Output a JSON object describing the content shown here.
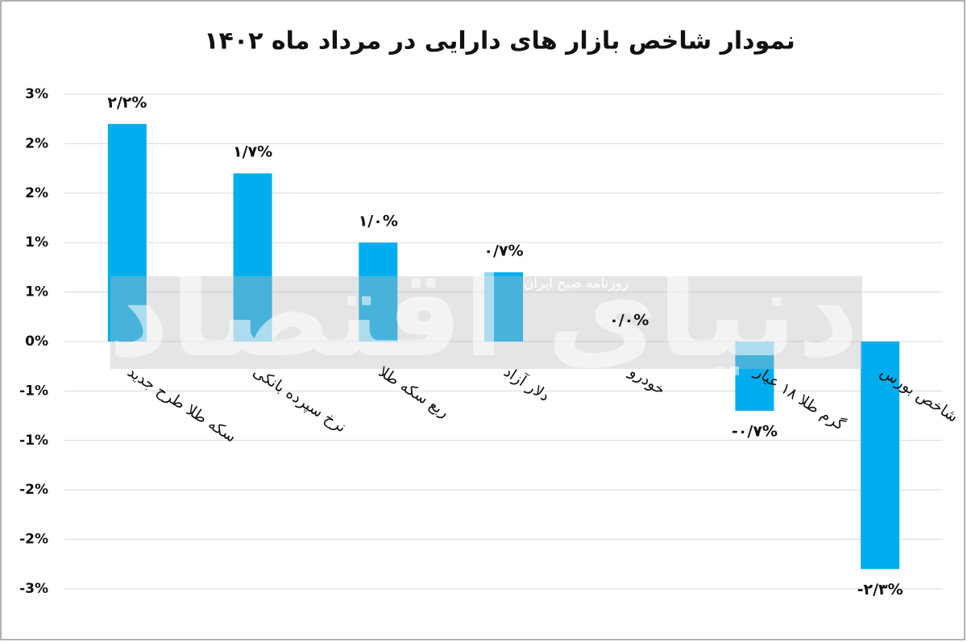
{
  "chart_data": {
    "type": "bar",
    "title": "نمودار شاخص بازار های دارایی در مرداد ماه ۱۴۰۲",
    "categories": [
      "سکه طلا طرح جدید",
      "نرخ سپرده بانکی",
      "ربع سکه طلا",
      "دلار آزاد",
      "خودرو",
      "گرم طلا ۱۸ عیار",
      "شاخص بورس"
    ],
    "values": [
      2.2,
      1.7,
      1.0,
      0.7,
      0,
      -0.7,
      -2.3
    ],
    "value_labels": [
      "۲/۲%",
      "۱/۷%",
      "۱/۰%",
      "۰/۷%",
      "۰/۰%",
      "-۰/۷%",
      "-۲/۳%"
    ],
    "color": "#00aeef",
    "ylim": [
      -2.5,
      2.5
    ],
    "yticks": [
      {
        "value": 2.5,
        "label": "3%"
      },
      {
        "value": 2,
        "label": "2%"
      },
      {
        "value": 1.5,
        "label": "2%"
      },
      {
        "value": 1,
        "label": "1%"
      },
      {
        "value": 0.5,
        "label": "1%"
      },
      {
        "value": 0,
        "label": "0%"
      },
      {
        "value": -0.5,
        "label": "-1%"
      },
      {
        "value": -1,
        "label": "-1%"
      },
      {
        "value": -1.5,
        "label": "-2%"
      },
      {
        "value": -2,
        "label": "-2%"
      },
      {
        "value": -2.5,
        "label": "-3%"
      }
    ],
    "grid": true,
    "watermark": [
      "دنیای اقتصاد",
      "روزنامه صبح ایران"
    ]
  }
}
